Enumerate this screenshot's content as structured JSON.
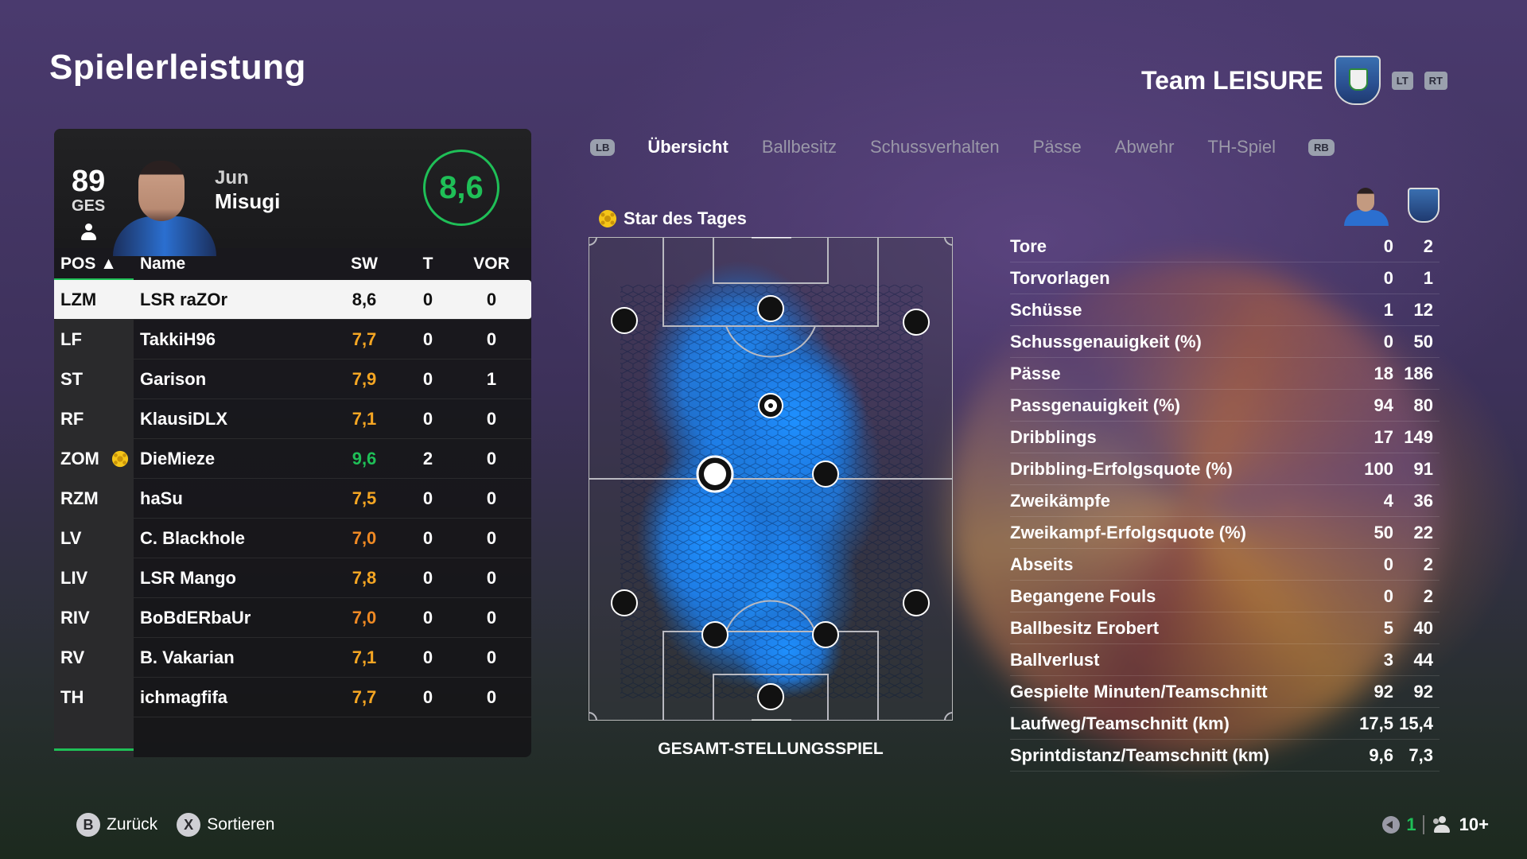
{
  "page_title": "Spielerleistung",
  "team": {
    "name": "Team LEISURE",
    "lt": "LT",
    "rt": "RT"
  },
  "player": {
    "ovr": "89",
    "ovr_label": "GES",
    "first_name": "Jun",
    "last_name": "Misugi",
    "rating": "8,6"
  },
  "table": {
    "headers": {
      "pos": "POS ▲",
      "name": "Name",
      "sw": "SW",
      "t": "T",
      "vor": "VOR"
    },
    "rows": [
      {
        "pos": "LZM",
        "name": "LSR raZOr",
        "sw": "8,6",
        "t": "0",
        "vor": "0",
        "color": "#111111"
      },
      {
        "pos": "LF",
        "name": "TakkiH96",
        "sw": "7,7",
        "t": "0",
        "vor": "0",
        "color": "#f5a623"
      },
      {
        "pos": "ST",
        "name": "Garison",
        "sw": "7,9",
        "t": "0",
        "vor": "1",
        "color": "#f5a623"
      },
      {
        "pos": "RF",
        "name": "KlausiDLX",
        "sw": "7,1",
        "t": "0",
        "vor": "0",
        "color": "#f5a623"
      },
      {
        "pos": "ZOM",
        "name": "DieMieze",
        "sw": "9,6",
        "t": "2",
        "vor": "0",
        "color": "#1fbf57"
      },
      {
        "pos": "RZM",
        "name": "haSu",
        "sw": "7,5",
        "t": "0",
        "vor": "0",
        "color": "#f5a623"
      },
      {
        "pos": "LV",
        "name": "C. Blackhole",
        "sw": "7,0",
        "t": "0",
        "vor": "0",
        "color": "#f08a24"
      },
      {
        "pos": "LIV",
        "name": "LSR Mango",
        "sw": "7,8",
        "t": "0",
        "vor": "0",
        "color": "#f5a623"
      },
      {
        "pos": "RIV",
        "name": "BoBdERbaUr",
        "sw": "7,0",
        "t": "0",
        "vor": "0",
        "color": "#f08a24"
      },
      {
        "pos": "RV",
        "name": "B. Vakarian",
        "sw": "7,1",
        "t": "0",
        "vor": "0",
        "color": "#f5a623"
      },
      {
        "pos": "TH",
        "name": "ichmagfifa",
        "sw": "7,7",
        "t": "0",
        "vor": "0",
        "color": "#f5a623"
      }
    ]
  },
  "tabs": {
    "lb": "LB",
    "rb": "RB",
    "items": [
      "Übersicht",
      "Ballbesitz",
      "Schussverhalten",
      "Pässe",
      "Abwehr",
      "TH-Spiel"
    ]
  },
  "pitch": {
    "star_label": "Star des Tages",
    "caption": "GESAMT-STELLUNGSSPIEL"
  },
  "stats": [
    {
      "label": "Tore",
      "a": "0",
      "b": "2"
    },
    {
      "label": "Torvorlagen",
      "a": "0",
      "b": "1"
    },
    {
      "label": "Schüsse",
      "a": "1",
      "b": "12"
    },
    {
      "label": "Schussgenauigkeit (%)",
      "a": "0",
      "b": "50"
    },
    {
      "label": "Pässe",
      "a": "18",
      "b": "186"
    },
    {
      "label": "Passgenauigkeit (%)",
      "a": "94",
      "b": "80"
    },
    {
      "label": "Dribblings",
      "a": "17",
      "b": "149"
    },
    {
      "label": "Dribbling-Erfolgsquote (%)",
      "a": "100",
      "b": "91"
    },
    {
      "label": "Zweikämpfe",
      "a": "4",
      "b": "36"
    },
    {
      "label": "Zweikampf-Erfolgsquote (%)",
      "a": "50",
      "b": "22"
    },
    {
      "label": "Abseits",
      "a": "0",
      "b": "2"
    },
    {
      "label": "Begangene Fouls",
      "a": "0",
      "b": "2"
    },
    {
      "label": "Ballbesitz Erobert",
      "a": "5",
      "b": "40"
    },
    {
      "label": "Ballverlust",
      "a": "3",
      "b": "44"
    },
    {
      "label": "Gespielte Minuten/Teamschnitt",
      "a": "92",
      "b": "92"
    },
    {
      "label": "Laufweg/Teamschnitt (km)",
      "a": "17,5",
      "b": "15,4"
    },
    {
      "label": "Sprintdistanz/Teamschnitt (km)",
      "a": "9,6",
      "b": "7,3"
    }
  ],
  "footer": {
    "back_key": "B",
    "back_label": "Zurück",
    "sort_key": "X",
    "sort_label": "Sortieren",
    "count": "1",
    "party": "10+"
  },
  "colors": {
    "accent_green": "#1fbf57",
    "rating_orange": "#f5a623",
    "heatmap_blue": "#1e90ff"
  }
}
